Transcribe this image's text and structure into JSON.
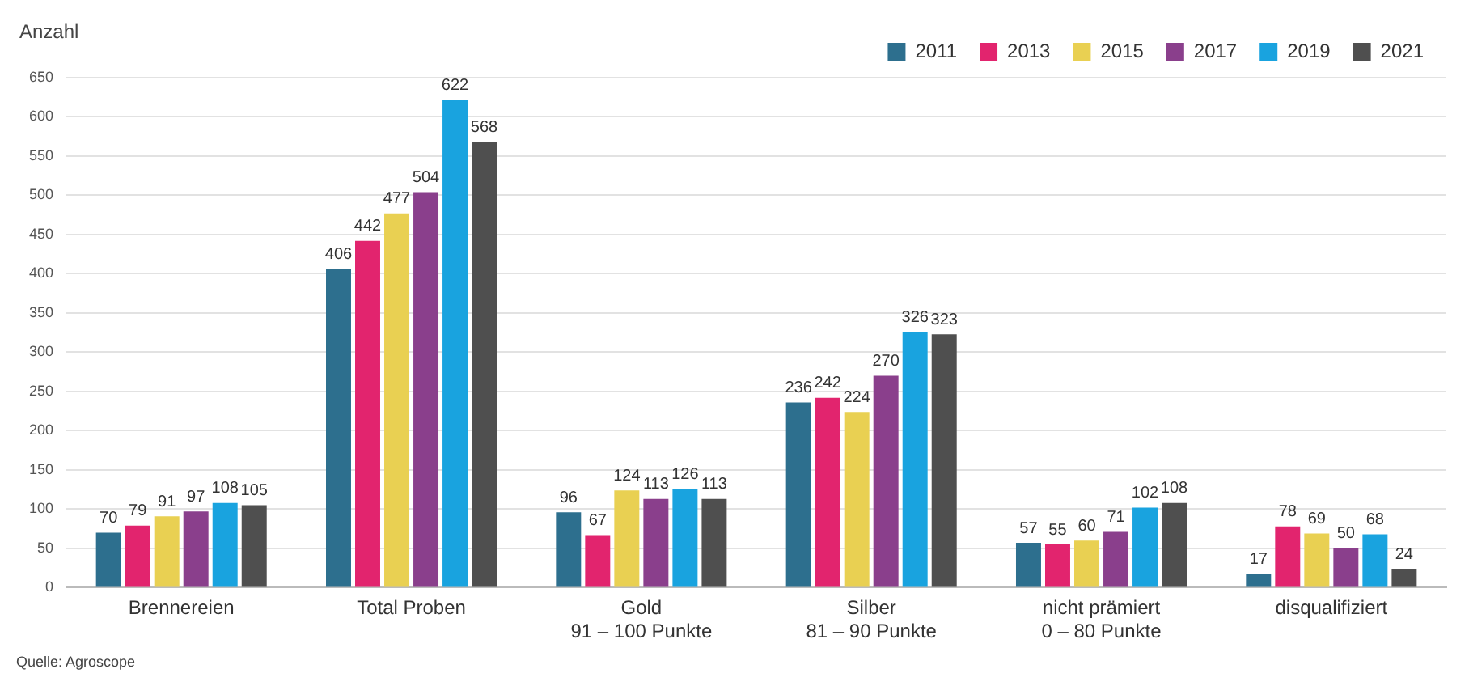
{
  "chart_data": {
    "type": "bar",
    "ylabel": "Anzahl",
    "categories": [
      "Brennereien",
      "Total Proben",
      "Gold\n91 – 100 Punkte",
      "Silber\n81 – 90 Punkte",
      "nicht prämiert\n0 – 80 Punkte",
      "disqualifiziert"
    ],
    "series": [
      {
        "name": "2011",
        "color": "#2d6f8e",
        "values": [
          70,
          406,
          96,
          236,
          57,
          17
        ]
      },
      {
        "name": "2013",
        "color": "#e2246e",
        "values": [
          79,
          442,
          67,
          242,
          55,
          78
        ]
      },
      {
        "name": "2015",
        "color": "#e9d052",
        "values": [
          91,
          477,
          124,
          224,
          60,
          69
        ]
      },
      {
        "name": "2017",
        "color": "#8a3f8c",
        "values": [
          97,
          504,
          113,
          270,
          71,
          50
        ]
      },
      {
        "name": "2019",
        "color": "#19a3df",
        "values": [
          108,
          622,
          126,
          326,
          102,
          68
        ]
      },
      {
        "name": "2021",
        "color": "#4f4f4f",
        "values": [
          105,
          568,
          113,
          323,
          108,
          24
        ]
      }
    ],
    "ylim": [
      0,
      650
    ],
    "yticks": [
      0,
      50,
      100,
      150,
      200,
      250,
      300,
      350,
      400,
      450,
      500,
      550,
      600,
      650
    ],
    "grid": "y",
    "legend": "top right",
    "data_labels": true,
    "annotations": [
      "Quelle: Agroscope"
    ]
  }
}
